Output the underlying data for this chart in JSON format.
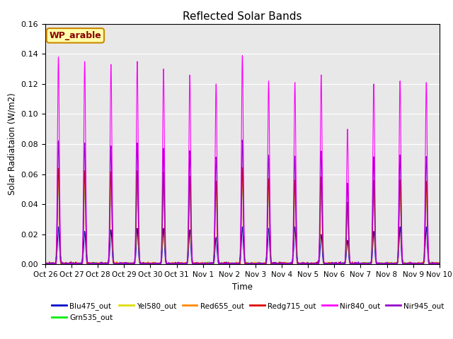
{
  "title": "Reflected Solar Bands",
  "xlabel": "Time",
  "ylabel": "Solar Radiataion (W/m2)",
  "annotation": "WP_arable",
  "ylim": [
    0,
    0.16
  ],
  "yticks": [
    0.0,
    0.02,
    0.04,
    0.06,
    0.08,
    0.1,
    0.12,
    0.14,
    0.16
  ],
  "series": [
    {
      "label": "Blu475_out",
      "color": "#0000cc",
      "peak_scale": 0.025
    },
    {
      "label": "Grn535_out",
      "color": "#00ee00",
      "peak_scale": 0.056
    },
    {
      "label": "Yel580_out",
      "color": "#dddd00",
      "peak_scale": 0.058
    },
    {
      "label": "Red655_out",
      "color": "#ff8800",
      "peak_scale": 0.06
    },
    {
      "label": "Redg715_out",
      "color": "#dd0000",
      "peak_scale": 0.062
    },
    {
      "label": "Nir840_out",
      "color": "#ff00ff",
      "peak_scale": 0.135
    },
    {
      "label": "Nir945_out",
      "color": "#9900cc",
      "peak_scale": 0.08
    }
  ],
  "x_tick_labels": [
    "Oct 26",
    "Oct 27",
    "Oct 28",
    "Oct 29",
    "Oct 30",
    "Oct 31",
    "Nov 1",
    "Nov 2",
    "Nov 3",
    "Nov 4",
    "Nov 5",
    "Nov 6",
    "Nov 7",
    "Nov 8",
    "Nov 9",
    "Nov 10"
  ],
  "nir840_peaks": [
    0.138,
    0.135,
    0.133,
    0.135,
    0.13,
    0.126,
    0.12,
    0.139,
    0.122,
    0.121,
    0.126,
    0.09,
    0.12,
    0.122,
    0.121,
    0
  ],
  "blu475_peaks": [
    0.025,
    0.022,
    0.023,
    0.024,
    0.024,
    0.023,
    0.018,
    0.025,
    0.024,
    0.025,
    0.02,
    0.016,
    0.022,
    0.025,
    0.025,
    0
  ],
  "background_color": "#e8e8e8",
  "facecolor": "#ffffff",
  "n_days": 15,
  "pts_per_day": 500
}
